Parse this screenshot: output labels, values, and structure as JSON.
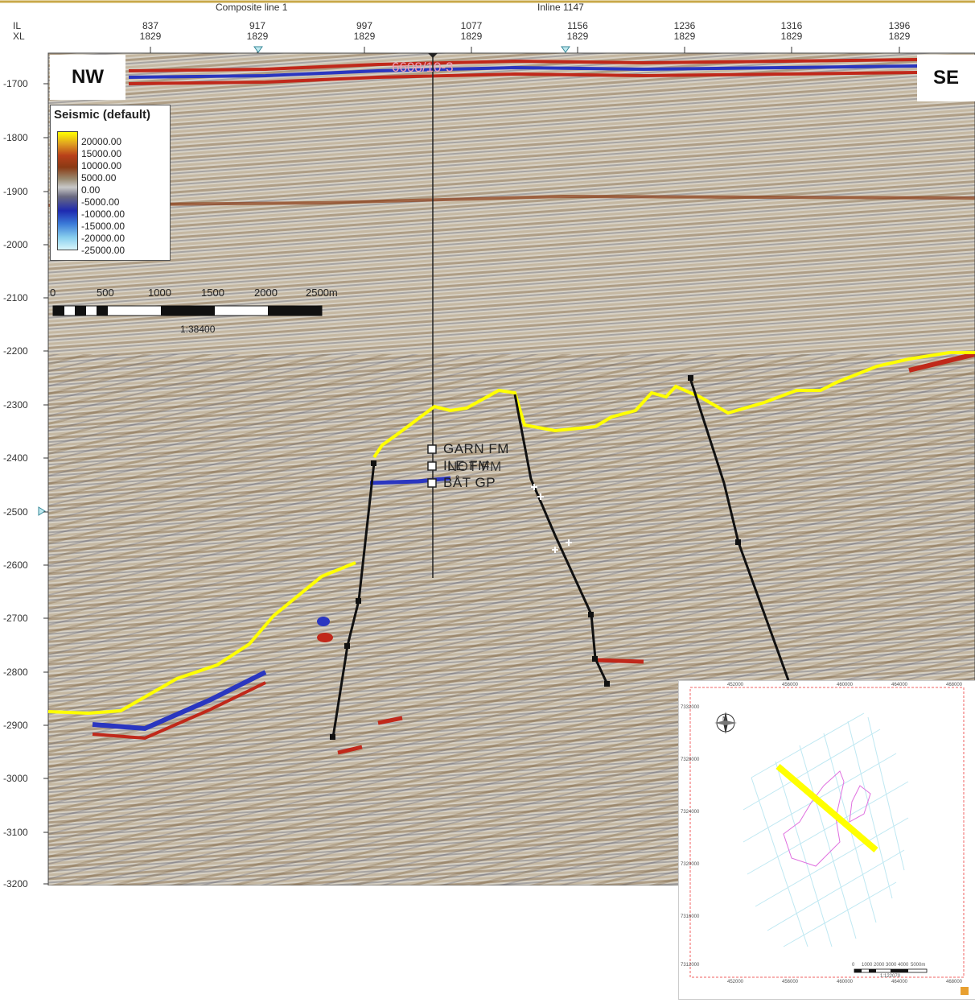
{
  "header": {
    "il_label": "IL",
    "xl_label": "XL",
    "composite_line": "Composite line 1",
    "inline": "Inline 1147",
    "ticks": [
      {
        "il": "837",
        "xl": "1829"
      },
      {
        "il": "917",
        "xl": "1829"
      },
      {
        "il": "997",
        "xl": "1829"
      },
      {
        "il": "1077",
        "xl": "1829"
      },
      {
        "il": "1156",
        "xl": "1829"
      },
      {
        "il": "1236",
        "xl": "1829"
      },
      {
        "il": "1316",
        "xl": "1829"
      },
      {
        "il": "1396",
        "xl": "1829"
      }
    ]
  },
  "direction": {
    "left": "NW",
    "right": "SE"
  },
  "depth_axis": {
    "labels": [
      "-1700",
      "-1800",
      "-1900",
      "-2000",
      "-2100",
      "-2200",
      "-2300",
      "-2400",
      "-2500",
      "-2600",
      "-2700",
      "-2800",
      "-2900",
      "-3000",
      "-3100",
      "-3200"
    ]
  },
  "legend": {
    "title": "Seismic (default)",
    "values": [
      "20000.00",
      "15000.00",
      "10000.00",
      "5000.00",
      "0.00",
      "-5000.00",
      "-10000.00",
      "-15000.00",
      "-20000.00",
      "-25000.00"
    ]
  },
  "scale_bar": {
    "labels": [
      "0",
      "500",
      "1000",
      "1500",
      "2000",
      "2500m"
    ],
    "ratio": "1:38400"
  },
  "well": {
    "name": "6608/10-3"
  },
  "formations": [
    "GARN FM",
    "ILE FM",
    "NOT FM",
    "BÅT GP"
  ],
  "inset_map": {
    "x_ticks": [
      "452000",
      "456000",
      "460000",
      "464000",
      "468000"
    ],
    "y_ticks": [
      "7332000",
      "7328000",
      "7324000",
      "7320000",
      "7316000",
      "7312000"
    ],
    "scale_labels": [
      "0",
      "1000",
      "2000",
      "3000",
      "4000",
      "5000m"
    ],
    "scale_ratio": "1:122070",
    "north_label": "N"
  },
  "colors": {
    "horizon": "#ffff00",
    "fault": "#111111",
    "well_label": "#f0a0b8",
    "outline": "#e070e0"
  }
}
